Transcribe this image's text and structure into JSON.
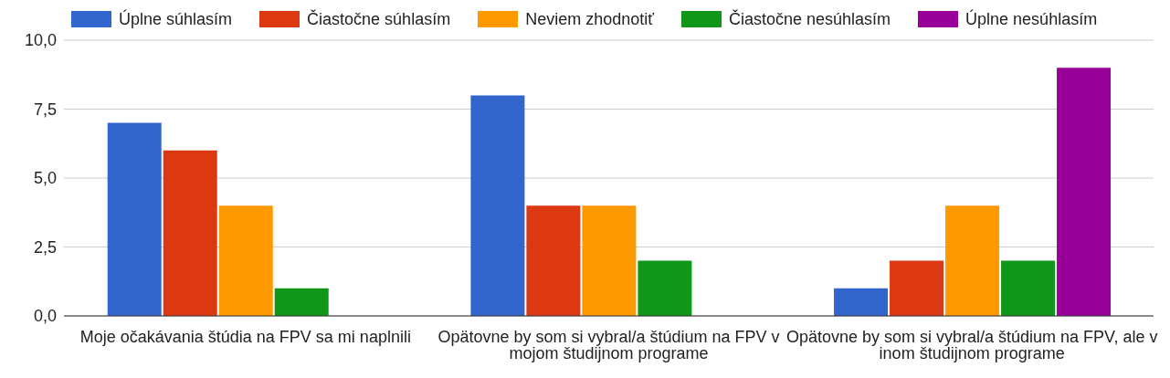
{
  "chart_data": {
    "type": "bar",
    "categories": [
      "Moje očakávania štúdia na FPV sa mi naplnili",
      "Opätovne by som si vybral/a štúdium na FPV v mojom študijnom programe",
      "Opätovne by som si vybral/a štúdium na FPV, ale v inom študijnom programe"
    ],
    "series": [
      {
        "name": "Úplne súhlasím",
        "color": "#3366cc",
        "values": [
          7,
          8,
          1
        ]
      },
      {
        "name": "Čiastočne súhlasím",
        "color": "#dc3912",
        "values": [
          6,
          4,
          2
        ]
      },
      {
        "name": "Neviem zhodnotiť",
        "color": "#ff9900",
        "values": [
          4,
          4,
          4
        ]
      },
      {
        "name": "Čiastočne nesúhlasím",
        "color": "#109618",
        "values": [
          1,
          2,
          2
        ]
      },
      {
        "name": "Úplne nesúhlasím",
        "color": "#990099",
        "values": [
          0,
          0,
          9
        ]
      }
    ],
    "ylim": [
      0,
      10
    ],
    "yticks": [
      {
        "value": 0,
        "label": "0,0"
      },
      {
        "value": 2.5,
        "label": "2,5"
      },
      {
        "value": 5,
        "label": "5,0"
      },
      {
        "value": 7.5,
        "label": "7,5"
      },
      {
        "value": 10,
        "label": "10,0"
      }
    ],
    "grid": "y",
    "legend": "top"
  }
}
